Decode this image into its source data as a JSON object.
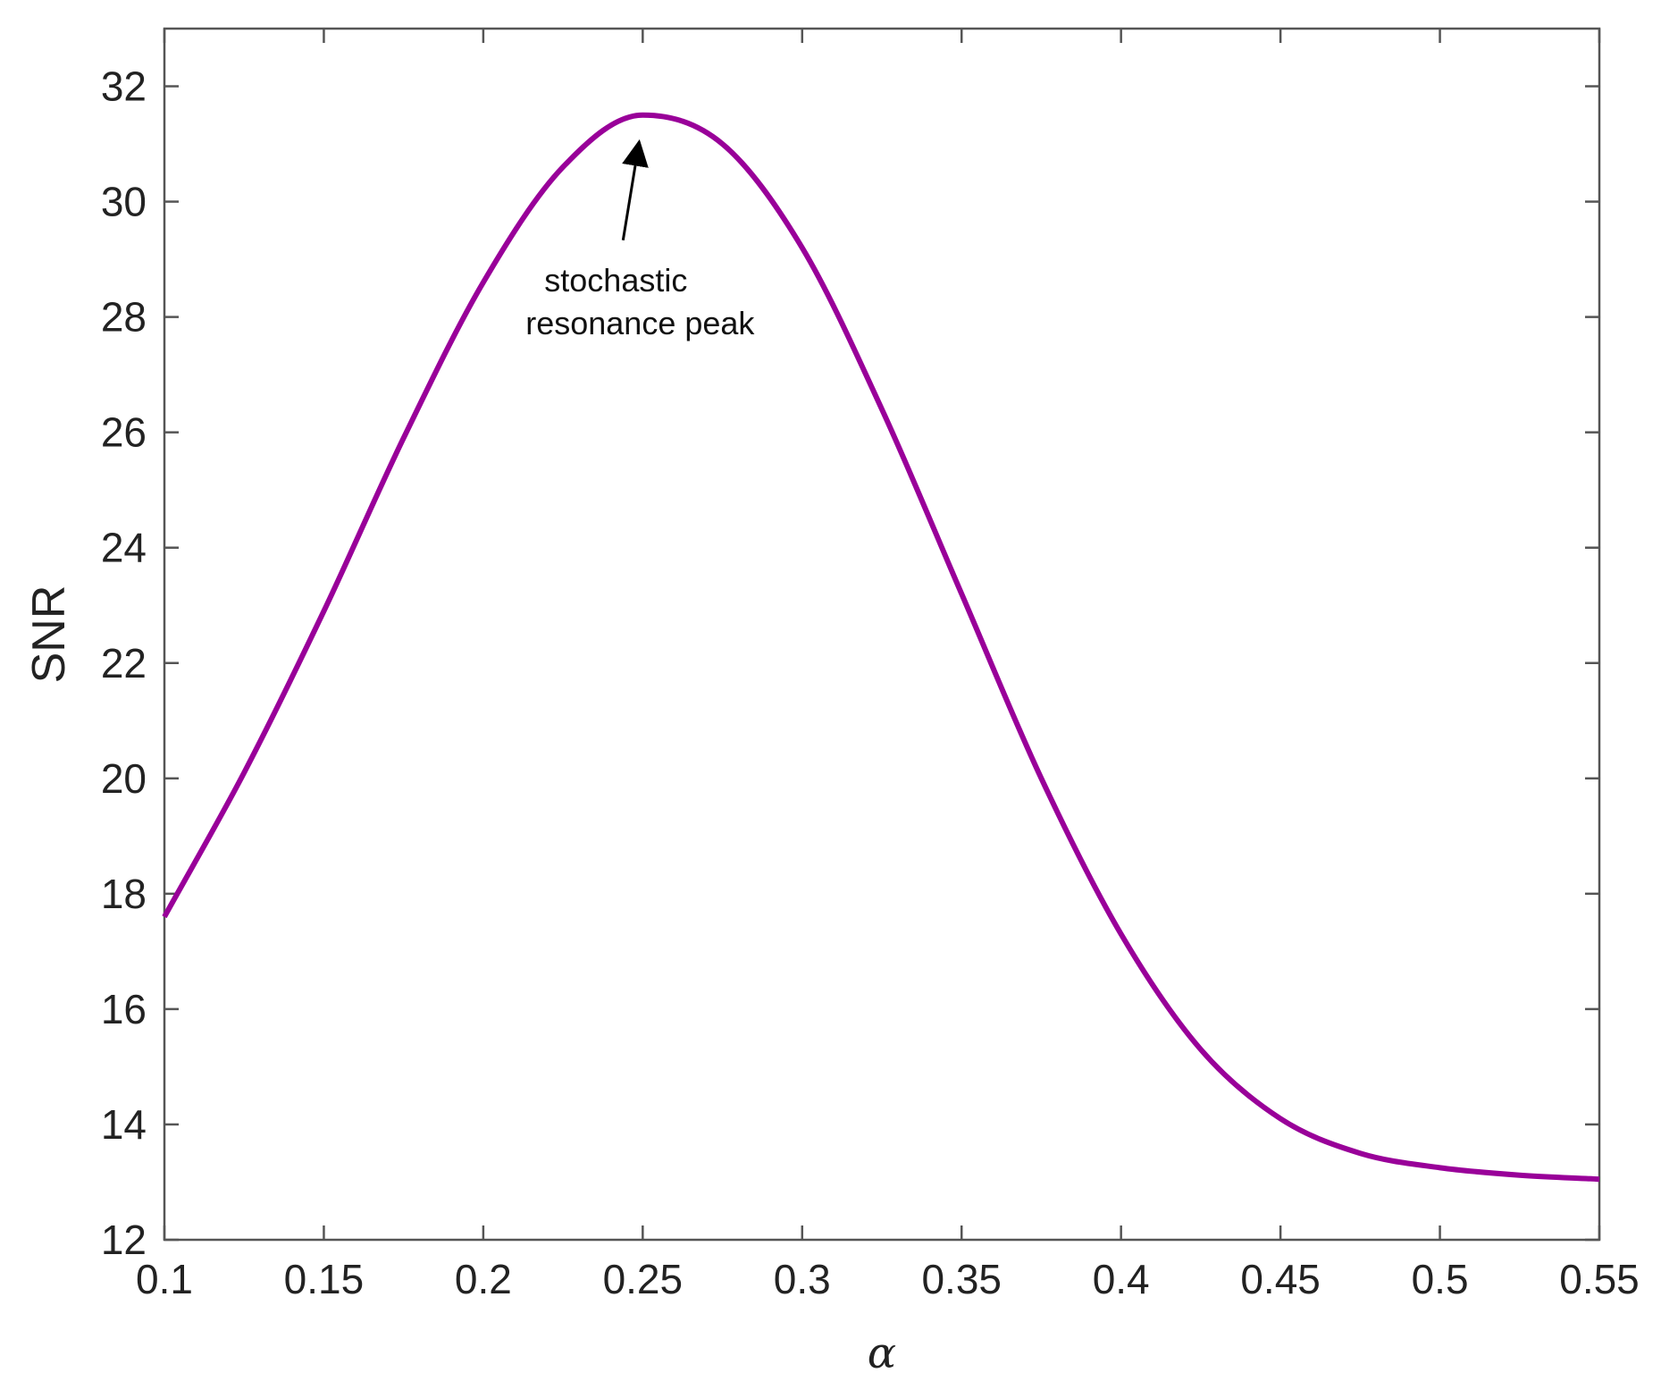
{
  "chart_data": {
    "type": "line",
    "title": "",
    "xlabel": "α",
    "ylabel": "SNR",
    "xlim": [
      0.1,
      0.55
    ],
    "ylim": [
      12,
      33
    ],
    "x_ticks": [
      0.1,
      0.15,
      0.2,
      0.25,
      0.3,
      0.35,
      0.4,
      0.45,
      0.5,
      0.55
    ],
    "x_tick_labels": [
      "0.1",
      "0.15",
      "0.2",
      "0.25",
      "0.3",
      "0.35",
      "0.4",
      "0.45",
      "0.5",
      "0.55"
    ],
    "y_ticks": [
      12,
      14,
      16,
      18,
      20,
      22,
      24,
      26,
      28,
      30,
      32
    ],
    "y_tick_labels": [
      "12",
      "14",
      "16",
      "18",
      "20",
      "22",
      "24",
      "26",
      "28",
      "30",
      "32"
    ],
    "grid": false,
    "series": [
      {
        "color": "#990099",
        "x": [
          0.1,
          0.125,
          0.15,
          0.175,
          0.2,
          0.225,
          0.25,
          0.275,
          0.3,
          0.325,
          0.35,
          0.375,
          0.4,
          0.425,
          0.45,
          0.475,
          0.5,
          0.525,
          0.55
        ],
        "y": [
          17.6,
          20.1,
          22.9,
          25.9,
          28.6,
          30.6,
          31.5,
          31.0,
          29.2,
          26.4,
          23.2,
          20.0,
          17.3,
          15.3,
          14.1,
          13.5,
          13.25,
          13.12,
          13.05
        ]
      }
    ],
    "annotation": {
      "lines": [
        "stochastic",
        "resonance peak"
      ],
      "x": 0.25,
      "y": 31.5
    }
  }
}
